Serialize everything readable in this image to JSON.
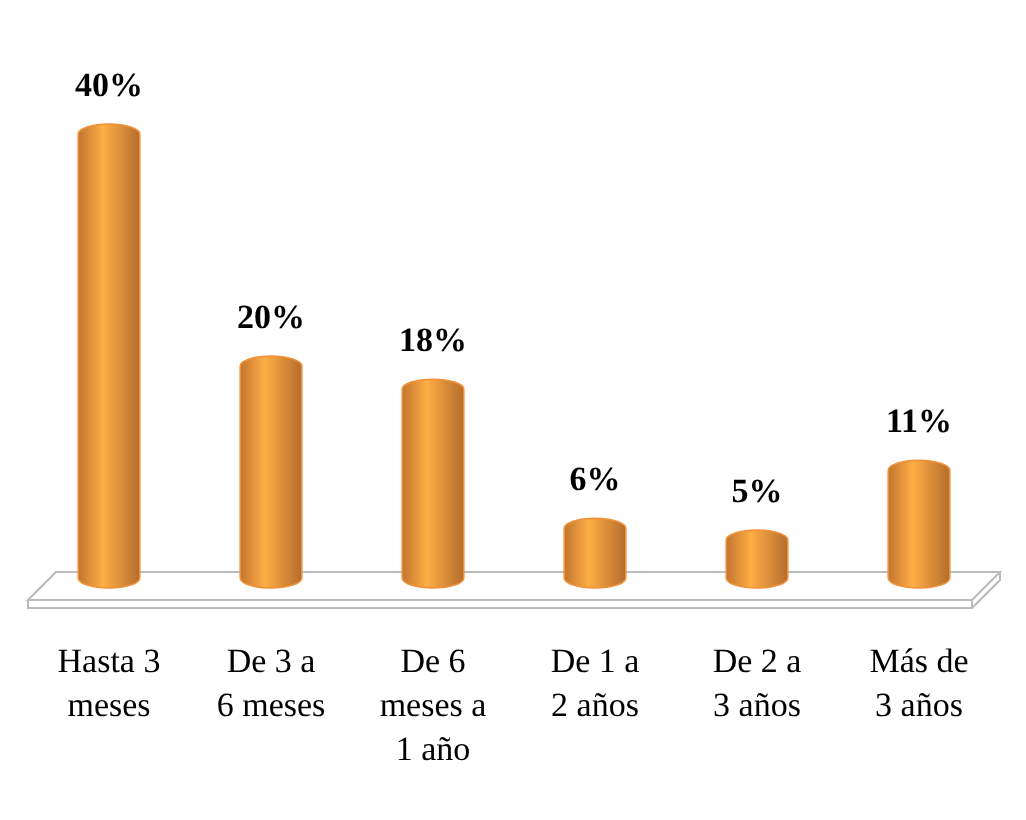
{
  "chart_data": {
    "type": "bar",
    "categories": [
      "Hasta 3 meses",
      "De 3 a 6 meses",
      "De 6 meses a 1 año",
      "De 1 a 2 años",
      "De 2 a 3 años",
      "Más de 3 años"
    ],
    "values": [
      40,
      20,
      18,
      6,
      5,
      11
    ],
    "value_labels": [
      "40%",
      "20%",
      "18%",
      "6%",
      "5%",
      "11%"
    ],
    "color": "#f0913a"
  }
}
